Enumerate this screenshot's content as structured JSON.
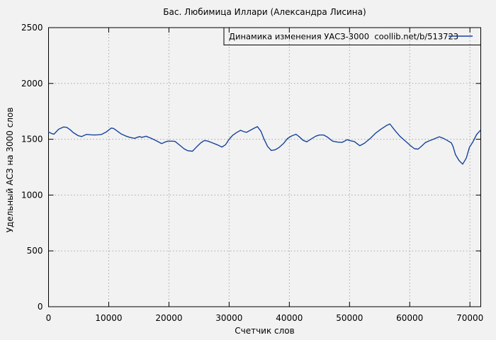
{
  "title": "Бас. Любимица Иллари (Александра Лисина)",
  "colors": {
    "background": "#f2f2f2",
    "plot_border": "#000000",
    "grid": "#a8a8a8",
    "line": "#16439c",
    "text": "#000000"
  },
  "chart_data": {
    "type": "line",
    "title": "Бас. Любимица Иллари (Александра Лисина)",
    "xlabel": "Счетчик слов",
    "ylabel": "Удельный АСЗ на 3000 слов",
    "xlim": [
      0,
      71800
    ],
    "ylim": [
      0,
      2500
    ],
    "xticks": [
      0,
      10000,
      20000,
      30000,
      40000,
      50000,
      60000,
      70000
    ],
    "yticks": [
      0,
      500,
      1000,
      1500,
      2000,
      2500
    ],
    "grid": true,
    "legend": {
      "label": "Динамика изменения УАСЗ-3000  coollib.net/b/513723",
      "position": "top-right-inside"
    },
    "series": [
      {
        "name": "Динамика изменения УАСЗ-3000",
        "color": "#16439c",
        "points": [
          [
            0,
            1565
          ],
          [
            500,
            1552
          ],
          [
            900,
            1546
          ],
          [
            1700,
            1590
          ],
          [
            2500,
            1610
          ],
          [
            3000,
            1607
          ],
          [
            3600,
            1585
          ],
          [
            4100,
            1560
          ],
          [
            4900,
            1533
          ],
          [
            5500,
            1524
          ],
          [
            6300,
            1544
          ],
          [
            7000,
            1540
          ],
          [
            7600,
            1538
          ],
          [
            8200,
            1540
          ],
          [
            8800,
            1543
          ],
          [
            9600,
            1566
          ],
          [
            10400,
            1600
          ],
          [
            10800,
            1597
          ],
          [
            11500,
            1570
          ],
          [
            12000,
            1550
          ],
          [
            12800,
            1530
          ],
          [
            13500,
            1517
          ],
          [
            14300,
            1508
          ],
          [
            15100,
            1524
          ],
          [
            15500,
            1517
          ],
          [
            16200,
            1527
          ],
          [
            17000,
            1510
          ],
          [
            17800,
            1489
          ],
          [
            18800,
            1461
          ],
          [
            19300,
            1474
          ],
          [
            19800,
            1483
          ],
          [
            20500,
            1483
          ],
          [
            21000,
            1481
          ],
          [
            21800,
            1447
          ],
          [
            22500,
            1415
          ],
          [
            23100,
            1398
          ],
          [
            23900,
            1393
          ],
          [
            24500,
            1426
          ],
          [
            25300,
            1468
          ],
          [
            25900,
            1489
          ],
          [
            26500,
            1483
          ],
          [
            27200,
            1468
          ],
          [
            28000,
            1451
          ],
          [
            28800,
            1430
          ],
          [
            29400,
            1451
          ],
          [
            30000,
            1500
          ],
          [
            30600,
            1536
          ],
          [
            31200,
            1559
          ],
          [
            31900,
            1580
          ],
          [
            32500,
            1567
          ],
          [
            32900,
            1562
          ],
          [
            33500,
            1580
          ],
          [
            34200,
            1600
          ],
          [
            34700,
            1613
          ],
          [
            35300,
            1570
          ],
          [
            35800,
            1500
          ],
          [
            36400,
            1435
          ],
          [
            37000,
            1400
          ],
          [
            37600,
            1405
          ],
          [
            38200,
            1422
          ],
          [
            39000,
            1460
          ],
          [
            39700,
            1507
          ],
          [
            40400,
            1530
          ],
          [
            41100,
            1545
          ],
          [
            41600,
            1525
          ],
          [
            42300,
            1490
          ],
          [
            42900,
            1477
          ],
          [
            43700,
            1505
          ],
          [
            44400,
            1528
          ],
          [
            45000,
            1538
          ],
          [
            45700,
            1538
          ],
          [
            46300,
            1520
          ],
          [
            47200,
            1483
          ],
          [
            48100,
            1474
          ],
          [
            48800,
            1473
          ],
          [
            49600,
            1496
          ],
          [
            50200,
            1486
          ],
          [
            50800,
            1480
          ],
          [
            51700,
            1442
          ],
          [
            52500,
            1465
          ],
          [
            53500,
            1510
          ],
          [
            54300,
            1553
          ],
          [
            55200,
            1590
          ],
          [
            56100,
            1622
          ],
          [
            56700,
            1637
          ],
          [
            57600,
            1575
          ],
          [
            58400,
            1525
          ],
          [
            59400,
            1478
          ],
          [
            60200,
            1440
          ],
          [
            60800,
            1415
          ],
          [
            61400,
            1412
          ],
          [
            62000,
            1440
          ],
          [
            62600,
            1470
          ],
          [
            63200,
            1485
          ],
          [
            63900,
            1500
          ],
          [
            64900,
            1522
          ],
          [
            65600,
            1508
          ],
          [
            66100,
            1493
          ],
          [
            66900,
            1468
          ],
          [
            67200,
            1435
          ],
          [
            67600,
            1362
          ],
          [
            68200,
            1309
          ],
          [
            68800,
            1277
          ],
          [
            69400,
            1331
          ],
          [
            69900,
            1426
          ],
          [
            70500,
            1478
          ],
          [
            71100,
            1542
          ],
          [
            71700,
            1578
          ]
        ]
      }
    ]
  }
}
